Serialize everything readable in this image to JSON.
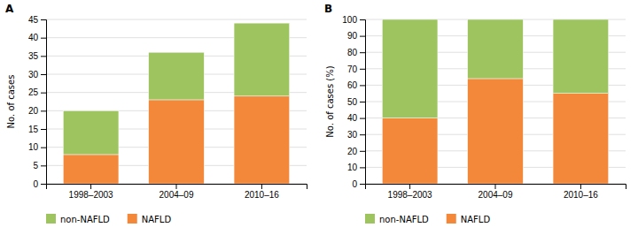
{
  "chart_data": [
    {
      "type": "bar",
      "title": "A",
      "stacked": true,
      "grid": true,
      "legend": "bottom",
      "categories": [
        "1998–2003",
        "2004–09",
        "2010–16"
      ],
      "ylabel": "No. of cases",
      "ylim": [
        0,
        45
      ],
      "yticks": [
        0,
        5,
        10,
        15,
        20,
        25,
        30,
        35,
        40,
        45
      ],
      "series": [
        {
          "name": "NAFLD",
          "color": "#F4883A",
          "values": [
            8,
            23,
            24
          ]
        },
        {
          "name": "non-NAFLD",
          "color": "#9DC45F",
          "values": [
            12,
            13,
            20
          ]
        }
      ]
    },
    {
      "type": "bar",
      "title": "B",
      "stacked": true,
      "grid": true,
      "legend": "bottom",
      "categories": [
        "1998–2003",
        "2004–09",
        "2010–16"
      ],
      "ylabel": "No. of cases (%)",
      "ylim": [
        0,
        100
      ],
      "yticks": [
        0,
        10,
        20,
        30,
        40,
        50,
        60,
        70,
        80,
        90,
        100
      ],
      "series": [
        {
          "name": "NAFLD",
          "color": "#F4883A",
          "values": [
            40,
            64,
            55
          ]
        },
        {
          "name": "non-NAFLD",
          "color": "#9DC45F",
          "values": [
            60,
            36,
            45
          ]
        }
      ]
    }
  ]
}
